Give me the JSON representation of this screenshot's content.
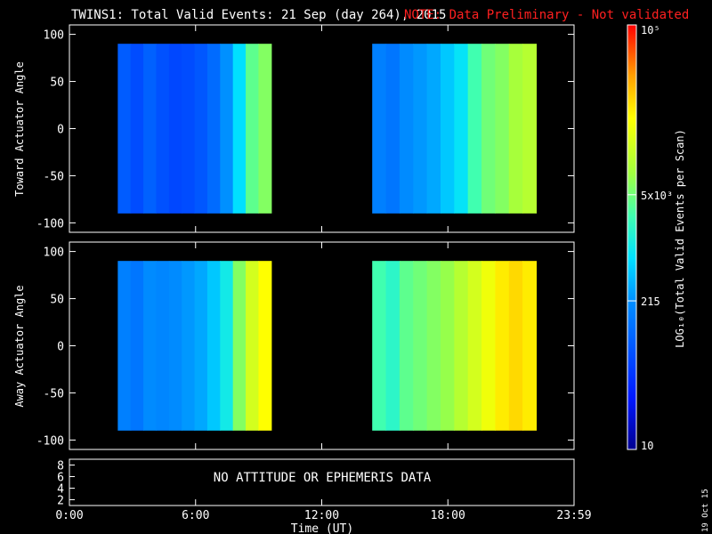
{
  "header": {
    "title": "TWINS1: Total Valid Events: 21 Sep (day 264), 2015",
    "note": "NOTE: Data Preliminary - Not validated",
    "note_color": "#ff2020"
  },
  "chart_data": [
    {
      "type": "heatmap",
      "panel": "top",
      "ylabel": "Toward Actuator Angle",
      "yticks": [
        "100",
        "50",
        "0",
        "-50",
        "-100"
      ],
      "ylim": [
        -110,
        110
      ],
      "xlim": [
        0,
        24
      ],
      "blocks": [
        {
          "x_start_hr": 2.3,
          "x_end_hr": 9.6,
          "y_min": -90,
          "y_max": 90,
          "levels": [
            0.25,
            0.22,
            0.26,
            0.23,
            0.21,
            0.22,
            0.24,
            0.28,
            0.35,
            0.45,
            0.58,
            0.62
          ]
        },
        {
          "x_start_hr": 14.4,
          "x_end_hr": 22.2,
          "y_min": -90,
          "y_max": 90,
          "levels": [
            0.32,
            0.3,
            0.34,
            0.36,
            0.38,
            0.42,
            0.46,
            0.55,
            0.6,
            0.62,
            0.66,
            0.68
          ]
        }
      ]
    },
    {
      "type": "heatmap",
      "panel": "middle",
      "ylabel": "Away Actuator Angle",
      "yticks": [
        "100",
        "50",
        "0",
        "-50",
        "-100"
      ],
      "ylim": [
        -110,
        110
      ],
      "xlim": [
        0,
        24
      ],
      "blocks": [
        {
          "x_start_hr": 2.3,
          "x_end_hr": 9.6,
          "y_min": -90,
          "y_max": 90,
          "levels": [
            0.32,
            0.3,
            0.34,
            0.33,
            0.34,
            0.36,
            0.38,
            0.42,
            0.48,
            0.62,
            0.72,
            0.78
          ]
        },
        {
          "x_start_hr": 14.4,
          "x_end_hr": 22.2,
          "y_min": -90,
          "y_max": 90,
          "levels": [
            0.55,
            0.52,
            0.58,
            0.6,
            0.62,
            0.64,
            0.68,
            0.72,
            0.76,
            0.8,
            0.82,
            0.8
          ]
        }
      ]
    }
  ],
  "bottom_panel": {
    "yticks": [
      "8",
      "6",
      "4",
      "2"
    ],
    "message": "NO ATTITUDE OR EPHEMERIS DATA"
  },
  "x_axis": {
    "label": "Time (UT)",
    "ticks": [
      "0:00",
      "6:00",
      "12:00",
      "18:00",
      "23:59"
    ]
  },
  "colorbar": {
    "label": "LOG₁₀(Total Valid Events per Scan)",
    "ticks": [
      {
        "text": "10⁵",
        "level": 1.0
      },
      {
        "text": "5x10³",
        "level": 0.6
      },
      {
        "text": "215",
        "level": 0.35
      },
      {
        "text": "10",
        "level": 0.0
      }
    ]
  },
  "footer": {
    "date_stamp": "19 Oct 15"
  }
}
